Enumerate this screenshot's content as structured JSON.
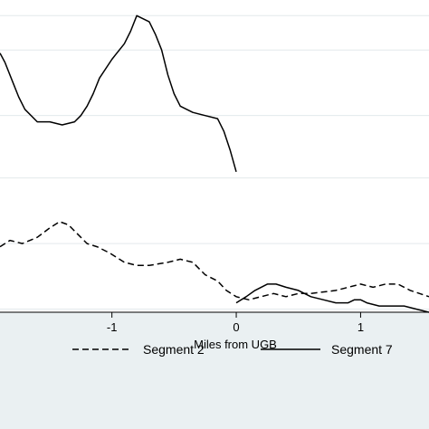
{
  "chart_data": {
    "type": "line",
    "title": "",
    "xlabel": "Miles from UGB",
    "ylabel": "",
    "xlim": [
      -1.9,
      1.55
    ],
    "ylim": [
      0,
      1
    ],
    "x_ticks": [
      {
        "value": -1,
        "label": "-1"
      },
      {
        "value": 0,
        "label": "0"
      },
      {
        "value": 1,
        "label": "1"
      }
    ],
    "y_gridlines": [
      0.01,
      0.22,
      0.43,
      0.63,
      0.84,
      0.95
    ],
    "grid": true,
    "legend_position": "bottom",
    "series": [
      {
        "name": "Segment 2",
        "style": "dashed",
        "x": [
          -1.9,
          -1.82,
          -1.72,
          -1.6,
          -1.5,
          -1.42,
          -1.35,
          -1.3,
          -1.25,
          -1.2,
          -1.12,
          -1.02,
          -0.9,
          -0.8,
          -0.7,
          -0.55,
          -0.45,
          -0.35,
          -0.3,
          -0.25,
          -0.15,
          -0.08,
          0.0,
          0.1,
          0.2,
          0.3,
          0.4,
          0.5,
          0.6,
          0.8,
          1.0,
          1.1,
          1.2,
          1.3,
          1.4,
          1.55
        ],
        "y": [
          0.21,
          0.23,
          0.22,
          0.24,
          0.27,
          0.29,
          0.28,
          0.26,
          0.24,
          0.22,
          0.21,
          0.19,
          0.16,
          0.15,
          0.15,
          0.16,
          0.17,
          0.16,
          0.14,
          0.12,
          0.1,
          0.07,
          0.05,
          0.04,
          0.05,
          0.06,
          0.05,
          0.06,
          0.06,
          0.07,
          0.09,
          0.08,
          0.09,
          0.09,
          0.07,
          0.05
        ]
      },
      {
        "name": "",
        "style": "solid",
        "x": [
          -1.9,
          -1.86,
          -1.8,
          -1.75,
          -1.7,
          -1.6,
          -1.5,
          -1.4,
          -1.3,
          -1.25,
          -1.2,
          -1.15,
          -1.1,
          -1.0,
          -0.9,
          -0.85,
          -0.8,
          -0.75,
          -0.7,
          -0.65,
          -0.6,
          -0.55,
          -0.5,
          -0.45,
          -0.35,
          -0.25,
          -0.15,
          -0.1,
          -0.05,
          0.0
        ],
        "y": [
          0.83,
          0.8,
          0.74,
          0.69,
          0.65,
          0.61,
          0.61,
          0.6,
          0.61,
          0.63,
          0.66,
          0.7,
          0.75,
          0.81,
          0.86,
          0.9,
          0.95,
          0.94,
          0.93,
          0.89,
          0.84,
          0.76,
          0.7,
          0.66,
          0.64,
          0.63,
          0.62,
          0.58,
          0.52,
          0.45
        ]
      },
      {
        "name": "Segment 7",
        "style": "solid",
        "x": [
          0.0,
          0.08,
          0.15,
          0.25,
          0.32,
          0.4,
          0.5,
          0.6,
          0.7,
          0.8,
          0.9,
          0.95,
          1.0,
          1.05,
          1.15,
          1.25,
          1.35,
          1.45,
          1.55
        ],
        "y": [
          0.03,
          0.05,
          0.07,
          0.09,
          0.09,
          0.08,
          0.07,
          0.05,
          0.04,
          0.03,
          0.03,
          0.04,
          0.04,
          0.03,
          0.02,
          0.02,
          0.02,
          0.01,
          0.0
        ]
      }
    ]
  }
}
